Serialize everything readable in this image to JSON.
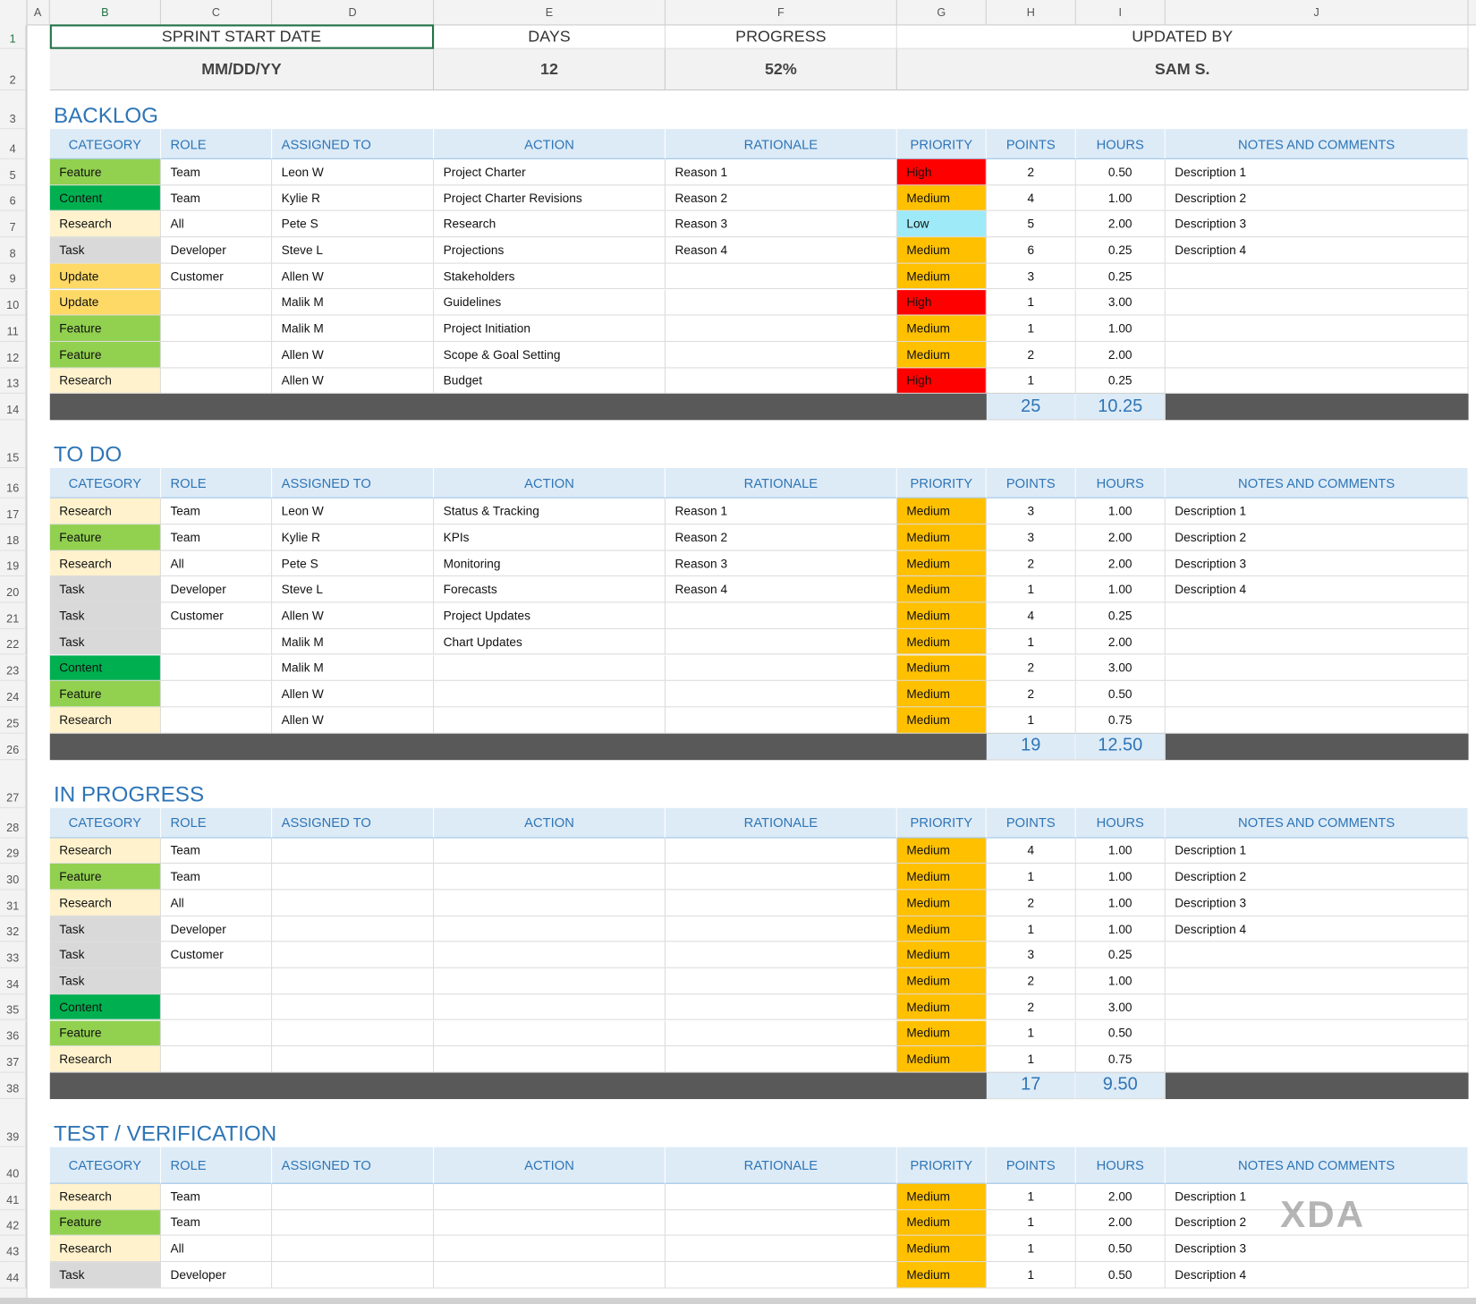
{
  "columns": [
    "A",
    "B",
    "C",
    "D",
    "E",
    "F",
    "G",
    "H",
    "I",
    "J"
  ],
  "row_numbers": [
    1,
    2,
    3,
    4,
    5,
    6,
    7,
    8,
    9,
    10,
    11,
    12,
    13,
    14,
    15,
    16,
    17,
    18,
    19,
    20,
    21,
    22,
    23,
    24,
    25,
    26,
    27,
    28,
    29,
    30,
    31,
    32,
    33,
    34,
    35,
    36,
    37,
    38,
    39,
    40,
    41,
    42,
    43,
    44
  ],
  "header": {
    "labels": [
      "SPRINT START DATE",
      "DAYS",
      "PROGRESS",
      "UPDATED BY"
    ],
    "values": [
      "MM/DD/YY",
      "12",
      "52%",
      "SAM S."
    ]
  },
  "table_headers": [
    "CATEGORY",
    "ROLE",
    "ASSIGNED TO",
    "ACTION",
    "RATIONALE",
    "PRIORITY",
    "POINTS",
    "HOURS",
    "NOTES AND COMMENTS"
  ],
  "category_colors": {
    "Feature": "#92d050",
    "Content": "#00b050",
    "Research": "#fff2cc",
    "Task": "#d9d9d9",
    "Update": "#ffd966"
  },
  "priority_colors": {
    "High": "#ff0000",
    "Medium": "#ffc000",
    "Low": "#9eeaf9"
  },
  "sections": [
    {
      "title": "BACKLOG",
      "rows": [
        [
          "Feature",
          "Team",
          "Leon W",
          "Project Charter",
          "Reason 1",
          "High",
          2,
          "0.50",
          "Description 1"
        ],
        [
          "Content",
          "Team",
          "Kylie R",
          "Project Charter Revisions",
          "Reason 2",
          "Medium",
          4,
          "1.00",
          "Description 2"
        ],
        [
          "Research",
          "All",
          "Pete S",
          "Research",
          "Reason 3",
          "Low",
          5,
          "2.00",
          "Description 3"
        ],
        [
          "Task",
          "Developer",
          "Steve L",
          "Projections",
          "Reason 4",
          "Medium",
          6,
          "0.25",
          "Description 4"
        ],
        [
          "Update",
          "Customer",
          "Allen W",
          "Stakeholders",
          null,
          "Medium",
          3,
          "0.25",
          null
        ],
        [
          "Update",
          null,
          "Malik M",
          "Guidelines",
          null,
          "High",
          1,
          "3.00",
          null
        ],
        [
          "Feature",
          null,
          "Malik M",
          "Project Initiation",
          null,
          "Medium",
          1,
          "1.00",
          null
        ],
        [
          "Feature",
          null,
          "Allen W",
          "Scope & Goal Setting",
          null,
          "Medium",
          2,
          "2.00",
          null
        ],
        [
          "Research",
          null,
          "Allen W",
          "Budget",
          null,
          "High",
          1,
          "0.25",
          null
        ]
      ],
      "total_points": 25,
      "total_hours": "10.25"
    },
    {
      "title": "TO DO",
      "rows": [
        [
          "Research",
          "Team",
          "Leon W",
          "Status & Tracking",
          "Reason 1",
          "Medium",
          3,
          "1.00",
          "Description 1"
        ],
        [
          "Feature",
          "Team",
          "Kylie R",
          "KPIs",
          "Reason 2",
          "Medium",
          3,
          "2.00",
          "Description 2"
        ],
        [
          "Research",
          "All",
          "Pete S",
          "Monitoring",
          "Reason 3",
          "Medium",
          2,
          "2.00",
          "Description 3"
        ],
        [
          "Task",
          "Developer",
          "Steve L",
          "Forecasts",
          "Reason 4",
          "Medium",
          1,
          "1.00",
          "Description 4"
        ],
        [
          "Task",
          "Customer",
          "Allen W",
          "Project Updates",
          null,
          "Medium",
          4,
          "0.25",
          null
        ],
        [
          "Task",
          null,
          "Malik M",
          "Chart Updates",
          null,
          "Medium",
          1,
          "2.00",
          null
        ],
        [
          "Content",
          null,
          "Malik M",
          null,
          null,
          "Medium",
          2,
          "3.00",
          null
        ],
        [
          "Feature",
          null,
          "Allen W",
          null,
          null,
          "Medium",
          2,
          "0.50",
          null
        ],
        [
          "Research",
          null,
          "Allen W",
          null,
          null,
          "Medium",
          1,
          "0.75",
          null
        ]
      ],
      "total_points": 19,
      "total_hours": "12.50"
    },
    {
      "title": "IN PROGRESS",
      "rows": [
        [
          "Research",
          "Team",
          null,
          null,
          null,
          "Medium",
          4,
          "1.00",
          "Description 1"
        ],
        [
          "Feature",
          "Team",
          null,
          null,
          null,
          "Medium",
          1,
          "1.00",
          "Description 2"
        ],
        [
          "Research",
          "All",
          null,
          null,
          null,
          "Medium",
          2,
          "1.00",
          "Description 3"
        ],
        [
          "Task",
          "Developer",
          null,
          null,
          null,
          "Medium",
          1,
          "1.00",
          "Description 4"
        ],
        [
          "Task",
          "Customer",
          null,
          null,
          null,
          "Medium",
          3,
          "0.25",
          null
        ],
        [
          "Task",
          null,
          null,
          null,
          null,
          "Medium",
          2,
          "1.00",
          null
        ],
        [
          "Content",
          null,
          null,
          null,
          null,
          "Medium",
          2,
          "3.00",
          null
        ],
        [
          "Feature",
          null,
          null,
          null,
          null,
          "Medium",
          1,
          "0.50",
          null
        ],
        [
          "Research",
          null,
          null,
          null,
          null,
          "Medium",
          1,
          "0.75",
          null
        ]
      ],
      "total_points": 17,
      "total_hours": "9.50"
    },
    {
      "title": "TEST / VERIFICATION",
      "rows": [
        [
          "Research",
          "Team",
          null,
          null,
          null,
          "Medium",
          1,
          "2.00",
          "Description 1"
        ],
        [
          "Feature",
          "Team",
          null,
          null,
          null,
          "Medium",
          1,
          "2.00",
          "Description 2"
        ],
        [
          "Research",
          "All",
          null,
          null,
          null,
          "Medium",
          1,
          "0.50",
          "Description 3"
        ],
        [
          "Task",
          "Developer",
          null,
          null,
          null,
          "Medium",
          1,
          "0.50",
          "Description 4"
        ]
      ]
    }
  ],
  "watermark": "XDA"
}
